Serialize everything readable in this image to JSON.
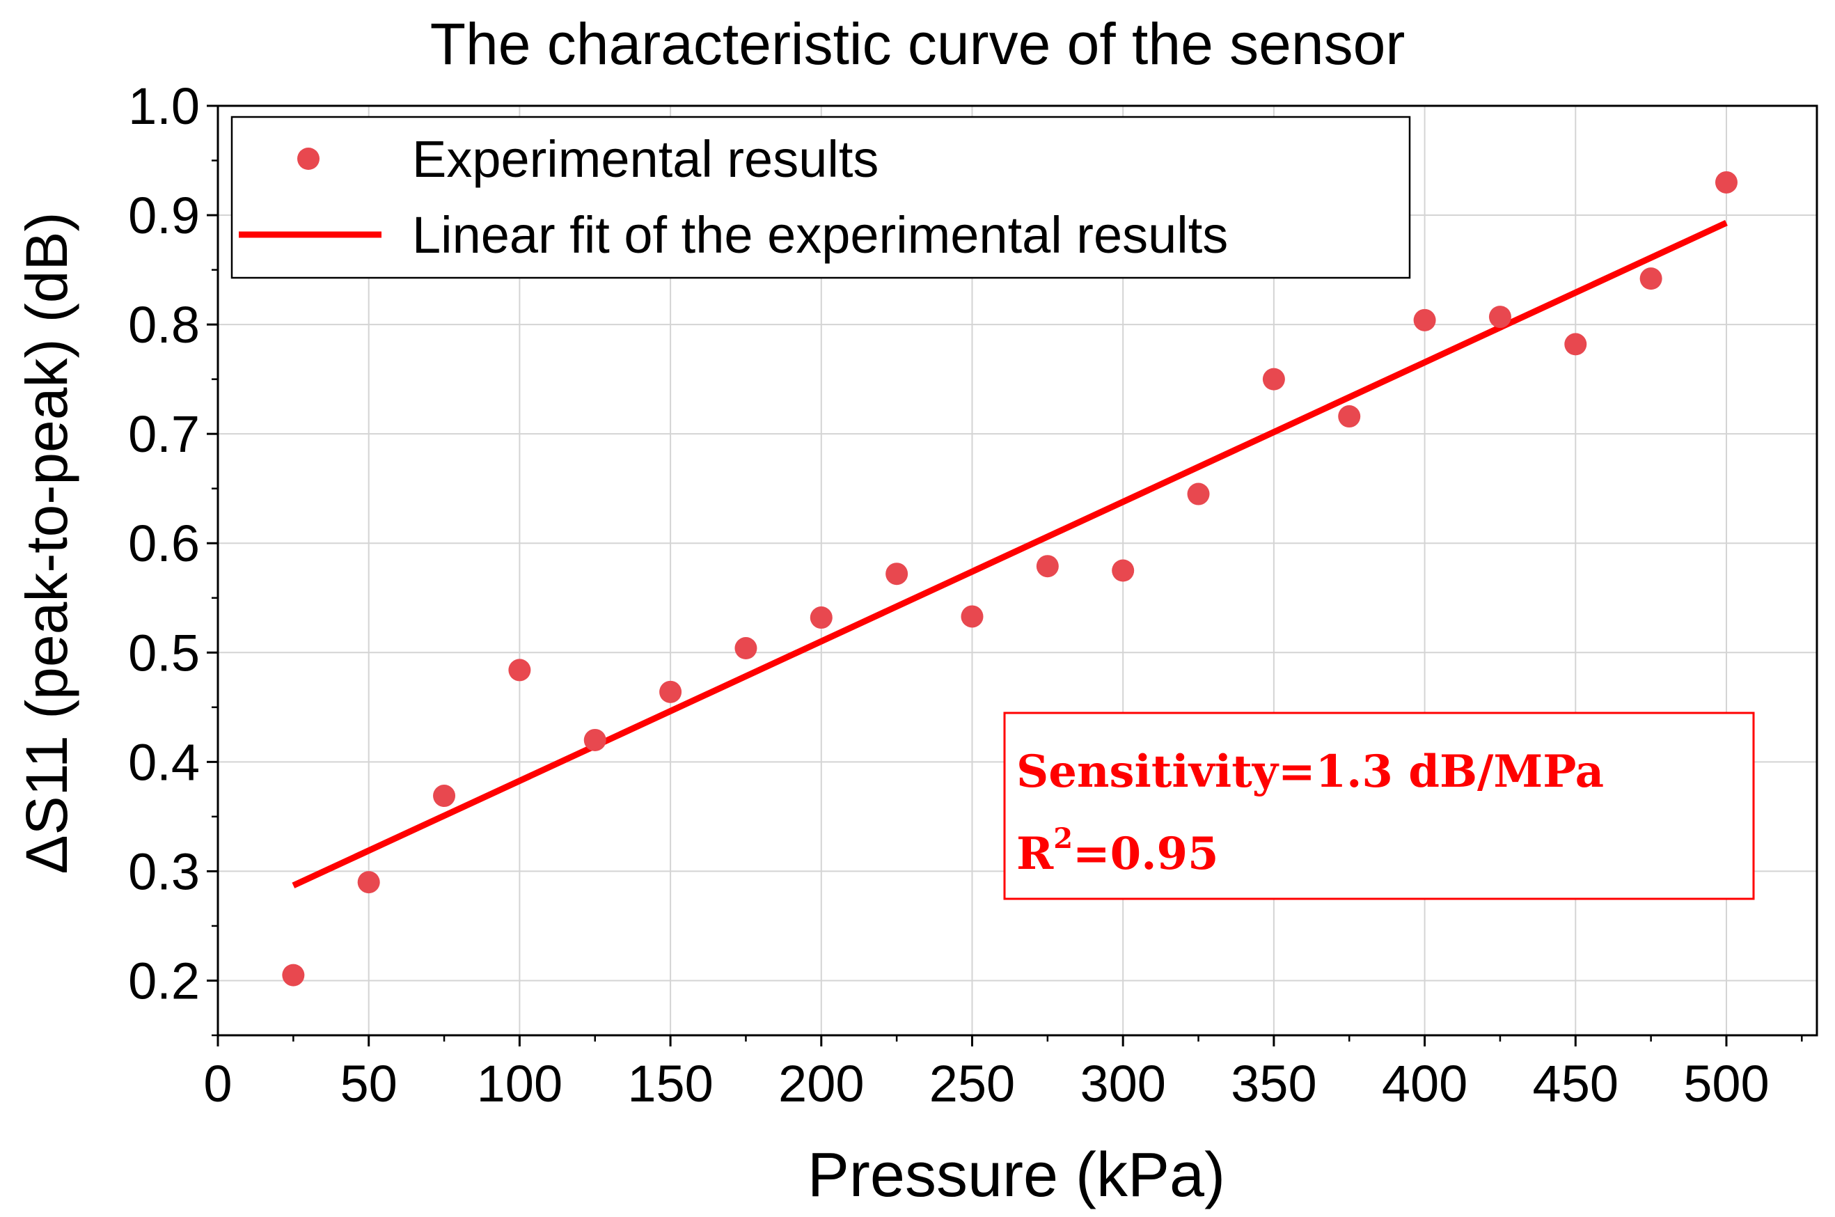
{
  "chart_data": {
    "type": "scatter",
    "title": "The characteristic curve of the sensor",
    "xlabel": "Pressure (kPa)",
    "ylabel": "ΔS11 (peak-to-peak) (dB)",
    "xlim": [
      0,
      530
    ],
    "ylim": [
      0.15,
      1.0
    ],
    "xticks": [
      0,
      50,
      100,
      150,
      200,
      250,
      300,
      350,
      400,
      450,
      500
    ],
    "xtick_labels": [
      "0",
      "50",
      "100",
      "150",
      "200",
      "250",
      "300",
      "350",
      "400",
      "450",
      "500"
    ],
    "yticks": [
      0.2,
      0.3,
      0.4,
      0.5,
      0.6,
      0.7,
      0.8,
      0.9,
      1.0
    ],
    "ytick_labels": [
      "0.2",
      "0.3",
      "0.4",
      "0.5",
      "0.6",
      "0.7",
      "0.8",
      "0.9",
      "1.0"
    ],
    "grid": true,
    "legend_position": "top-left",
    "series": [
      {
        "name": "Experimental results",
        "kind": "scatter",
        "color": "#e8484f",
        "x": [
          25,
          50,
          75,
          100,
          125,
          150,
          175,
          200,
          225,
          250,
          275,
          300,
          325,
          350,
          375,
          400,
          425,
          450,
          475,
          500
        ],
        "y": [
          0.205,
          0.29,
          0.369,
          0.484,
          0.42,
          0.464,
          0.504,
          0.532,
          0.572,
          0.533,
          0.579,
          0.575,
          0.645,
          0.75,
          0.716,
          0.804,
          0.807,
          0.782,
          0.842,
          0.93
        ]
      },
      {
        "name": "Linear fit of the experimental results",
        "kind": "line",
        "color": "#ff0000",
        "x": [
          25,
          500
        ],
        "y": [
          0.287,
          0.893
        ]
      }
    ],
    "annotation": {
      "sensitivity_text": "Sensitivity=1.3 dB/MPa",
      "r2_prefix": "R",
      "r2_superscript": "2",
      "r2_value": "=0.95",
      "color": "#ff0000"
    }
  }
}
